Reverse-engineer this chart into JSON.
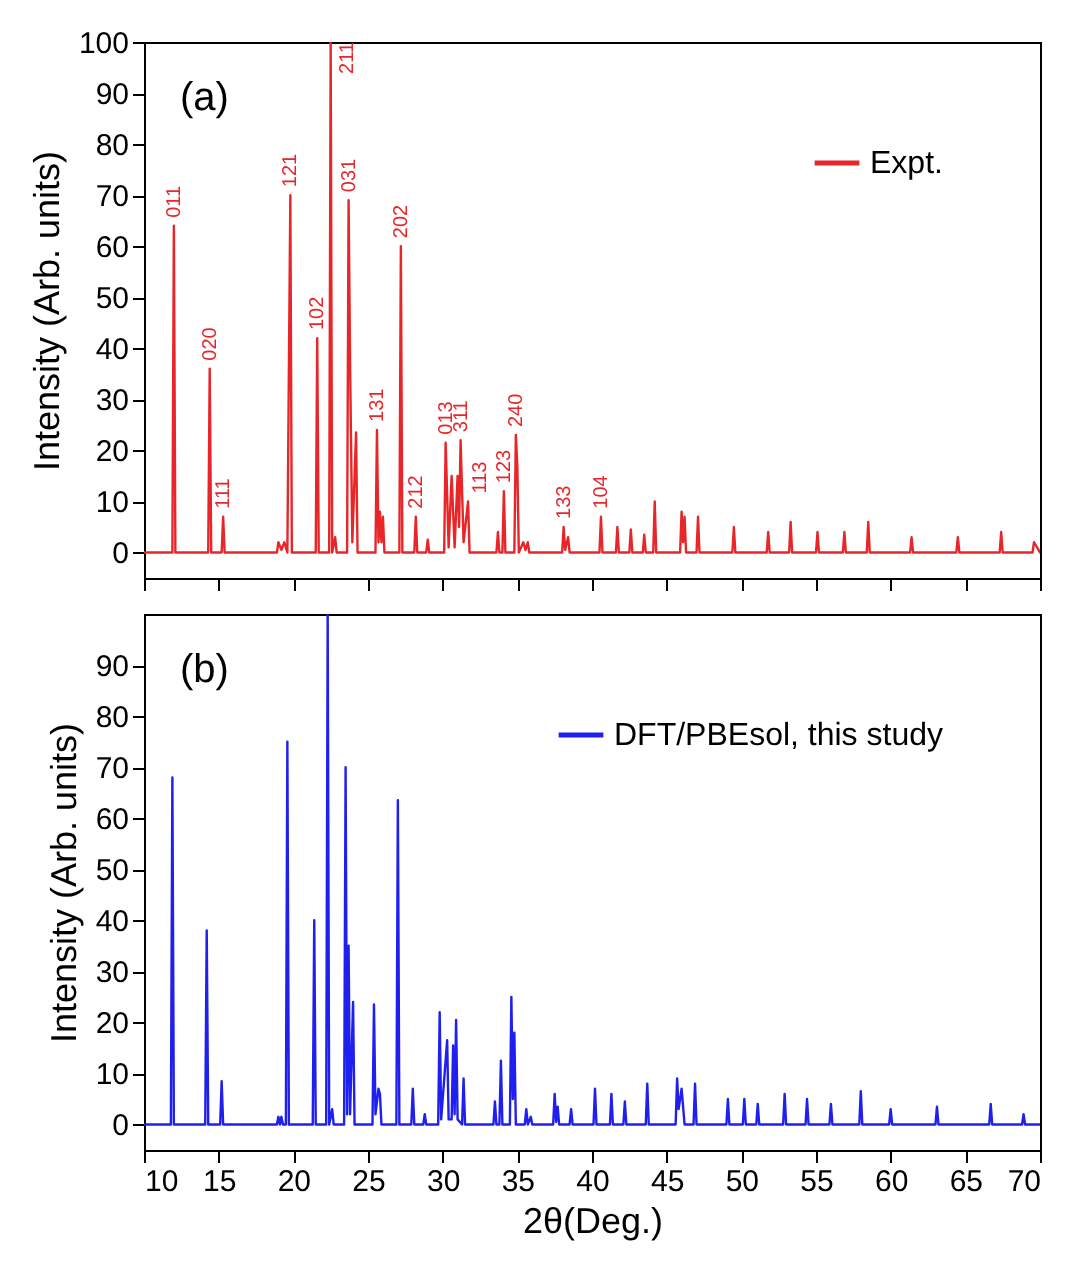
{
  "chart_data": [
    {
      "type": "line",
      "ylabel": "Intensity (Arb. units)",
      "xlim": [
        10,
        70
      ],
      "xticks": [
        10,
        15,
        20,
        25,
        30,
        35,
        40,
        45,
        50,
        55,
        60,
        65,
        70
      ],
      "ylim": [
        -5,
        100
      ],
      "yticks": [
        0,
        10,
        20,
        30,
        40,
        50,
        60,
        70,
        80,
        90,
        100
      ],
      "tick_labels": "y",
      "grid": false,
      "legend": "top right",
      "series": [
        {
          "name": "Expt.",
          "color": "#e8262a",
          "x": [
            10,
            11.9,
            12.0,
            12.1,
            14.3,
            14.4,
            14.5,
            15.2,
            15.3,
            15.4,
            18.9,
            19.0,
            19.2,
            19.4,
            19.6,
            19.8,
            19.9,
            21.5,
            21.6,
            21.7,
            22.4,
            22.5,
            22.6,
            22.8,
            22.9,
            23.6,
            23.7,
            23.8,
            23.95,
            24.2,
            24.3,
            25.5,
            25.6,
            25.7,
            25.8,
            25.9,
            26.0,
            26.1,
            27.1,
            27.2,
            27.3,
            28.1,
            28.2,
            28.3,
            28.9,
            29.0,
            29.1,
            30.1,
            30.2,
            30.4,
            30.6,
            30.8,
            31.0,
            31.1,
            31.2,
            31.4,
            31.7,
            31.8,
            33.6,
            33.7,
            33.8,
            34.0,
            34.1,
            34.2,
            34.8,
            34.9,
            35.0,
            35.1,
            35.4,
            35.55,
            35.7,
            35.8,
            38.0,
            38.1,
            38.2,
            38.4,
            38.5,
            40.5,
            40.6,
            40.7,
            41.6,
            41.7,
            41.8,
            42.5,
            42.6,
            42.7,
            43.4,
            43.5,
            43.6,
            44.1,
            44.2,
            44.3,
            45.9,
            46.0,
            46.1,
            46.2,
            46.3,
            47.0,
            47.1,
            47.2,
            49.4,
            49.5,
            49.6,
            51.7,
            51.8,
            51.9,
            53.2,
            53.3,
            53.4,
            55.0,
            55.1,
            55.2,
            56.8,
            56.9,
            57.0,
            58.4,
            58.5,
            58.6,
            61.3,
            61.4,
            61.5,
            64.4,
            64.5,
            64.6,
            67.3,
            67.4,
            67.5,
            69.5,
            69.6,
            70
          ],
          "values": [
            0,
            0,
            64,
            0,
            0,
            36,
            0,
            0,
            7,
            0,
            0,
            2,
            0.5,
            2,
            0,
            70,
            0,
            0,
            42,
            0,
            0,
            100,
            0,
            3,
            0,
            0,
            69,
            37,
            2,
            23.5,
            0,
            0,
            24,
            2,
            8,
            2,
            7,
            0,
            0,
            60,
            0,
            0,
            7,
            0,
            0,
            2.5,
            0,
            0,
            21.5,
            1,
            15,
            1,
            15,
            5,
            22,
            2,
            10,
            0,
            0,
            4,
            0,
            0,
            12,
            0,
            0,
            23,
            17,
            0,
            2,
            0.5,
            2,
            0,
            0,
            5,
            0.5,
            3,
            0,
            0,
            7,
            0,
            0,
            5,
            0,
            0,
            4.5,
            0,
            0,
            3.5,
            0,
            0,
            10,
            0,
            0,
            8,
            2,
            7,
            0,
            0,
            7,
            0,
            0,
            5,
            0,
            0,
            4,
            0,
            0,
            6,
            0,
            0,
            4,
            0,
            0,
            4,
            0,
            0,
            6,
            0,
            0,
            3,
            0,
            0,
            3,
            0,
            0,
            4,
            0,
            0,
            2,
            0
          ]
        }
      ],
      "annotations": [
        "(a)",
        {
          "text": "011",
          "x": 12.0,
          "y": 64
        },
        {
          "text": "020",
          "x": 14.4,
          "y": 36
        },
        {
          "text": "111",
          "x": 15.3,
          "y": 7
        },
        {
          "text": "121",
          "x": 19.8,
          "y": 70
        },
        {
          "text": "102",
          "x": 21.6,
          "y": 42
        },
        {
          "text": "211",
          "x": 22.5,
          "y": 100
        },
        {
          "text": "031",
          "x": 23.7,
          "y": 69
        },
        {
          "text": "131",
          "x": 25.6,
          "y": 24
        },
        {
          "text": "202",
          "x": 27.2,
          "y": 60
        },
        {
          "text": "212",
          "x": 28.2,
          "y": 7
        },
        {
          "text": "013",
          "x": 30.2,
          "y": 21.5
        },
        {
          "text": "311",
          "x": 31.2,
          "y": 22
        },
        {
          "text": "113",
          "x": 31.7,
          "y": 10
        },
        {
          "text": "123",
          "x": 34.1,
          "y": 12
        },
        {
          "text": "240",
          "x": 34.9,
          "y": 23
        },
        {
          "text": "133",
          "x": 38.1,
          "y": 5
        },
        {
          "text": "104",
          "x": 40.6,
          "y": 7
        }
      ]
    },
    {
      "type": "line",
      "xlabel": "2θ(Deg.)",
      "ylabel": "Intensity (Arb. units)",
      "xlim": [
        10,
        70
      ],
      "xticks": [
        10,
        15,
        20,
        25,
        30,
        35,
        40,
        45,
        50,
        55,
        60,
        65,
        70
      ],
      "ylim": [
        -5,
        100
      ],
      "yticks": [
        0,
        10,
        20,
        30,
        40,
        50,
        60,
        70,
        80,
        90
      ],
      "grid": false,
      "legend": "top right",
      "series": [
        {
          "name": "DFT/PBEsol, this study",
          "color": "#1f1fef",
          "x": [
            10,
            11.8,
            11.9,
            12.0,
            14.1,
            14.2,
            14.3,
            15.1,
            15.2,
            15.3,
            18.9,
            19.0,
            19.1,
            19.2,
            19.3,
            19.5,
            19.6,
            19.7,
            21.3,
            21.4,
            21.5,
            22.2,
            22.3,
            22.4,
            22.6,
            22.7,
            23.4,
            23.5,
            23.6,
            23.7,
            23.8,
            24.0,
            24.1,
            25.3,
            25.4,
            25.5,
            25.7,
            25.8,
            25.9,
            26.9,
            27.0,
            27.1,
            27.9,
            28.0,
            28.1,
            28.7,
            28.8,
            28.9,
            29.7,
            29.8,
            29.9,
            30.3,
            30.4,
            30.6,
            30.7,
            30.8,
            30.9,
            31.0,
            31.3,
            31.4,
            31.5,
            33.4,
            33.5,
            33.6,
            33.8,
            33.9,
            34.0,
            34.5,
            34.6,
            34.7,
            34.8,
            34.9,
            35.5,
            35.6,
            35.7,
            35.9,
            36.0,
            37.4,
            37.5,
            37.6,
            37.7,
            37.8,
            38.5,
            38.6,
            38.7,
            40.1,
            40.2,
            40.3,
            41.2,
            41.3,
            41.4,
            42.1,
            42.2,
            42.3,
            43.6,
            43.7,
            43.8,
            45.6,
            45.7,
            45.8,
            46.0,
            46.2,
            46.8,
            46.9,
            47.0,
            49.0,
            49.1,
            49.2,
            50.1,
            50.2,
            50.3,
            51.0,
            51.1,
            51.2,
            52.8,
            52.9,
            53.0,
            54.3,
            54.4,
            54.5,
            55.9,
            56.0,
            56.1,
            57.9,
            58.0,
            58.1,
            59.9,
            60.0,
            60.1,
            63.0,
            63.1,
            63.2,
            66.6,
            66.7,
            66.8,
            68.8,
            68.9,
            69.0,
            70
          ],
          "values": [
            0,
            0,
            68,
            0,
            0,
            38,
            0,
            0,
            8.5,
            0,
            0,
            1.5,
            0,
            1.5,
            0,
            0,
            75,
            0,
            0,
            40,
            0,
            0,
            100,
            0,
            3,
            0,
            0,
            70,
            2,
            35,
            2,
            24,
            0,
            0,
            23.5,
            2,
            7,
            6,
            0,
            0,
            63.5,
            0,
            0,
            7,
            0,
            0,
            2,
            0,
            0,
            22,
            1,
            16.5,
            1,
            1,
            15.5,
            2,
            20.5,
            1,
            0,
            9,
            0,
            0,
            4.5,
            0,
            0,
            12.5,
            0,
            0,
            25,
            5,
            18,
            0,
            0,
            3,
            0,
            1.5,
            0,
            0,
            6,
            0.5,
            3.5,
            0,
            0,
            3,
            0,
            0,
            7,
            0,
            0,
            6,
            0,
            0,
            4.5,
            0,
            0,
            8,
            0,
            0,
            9,
            3,
            7,
            0,
            0,
            8,
            0,
            0,
            5,
            0,
            0,
            5,
            0,
            0,
            4,
            0,
            0,
            6,
            0,
            0,
            5,
            0,
            0,
            4,
            0,
            0,
            6.5,
            0,
            0,
            3,
            0,
            0,
            3.5,
            0,
            0,
            4,
            0,
            0,
            2,
            0,
            0
          ]
        }
      ],
      "annotations": [
        "(b)"
      ]
    }
  ]
}
